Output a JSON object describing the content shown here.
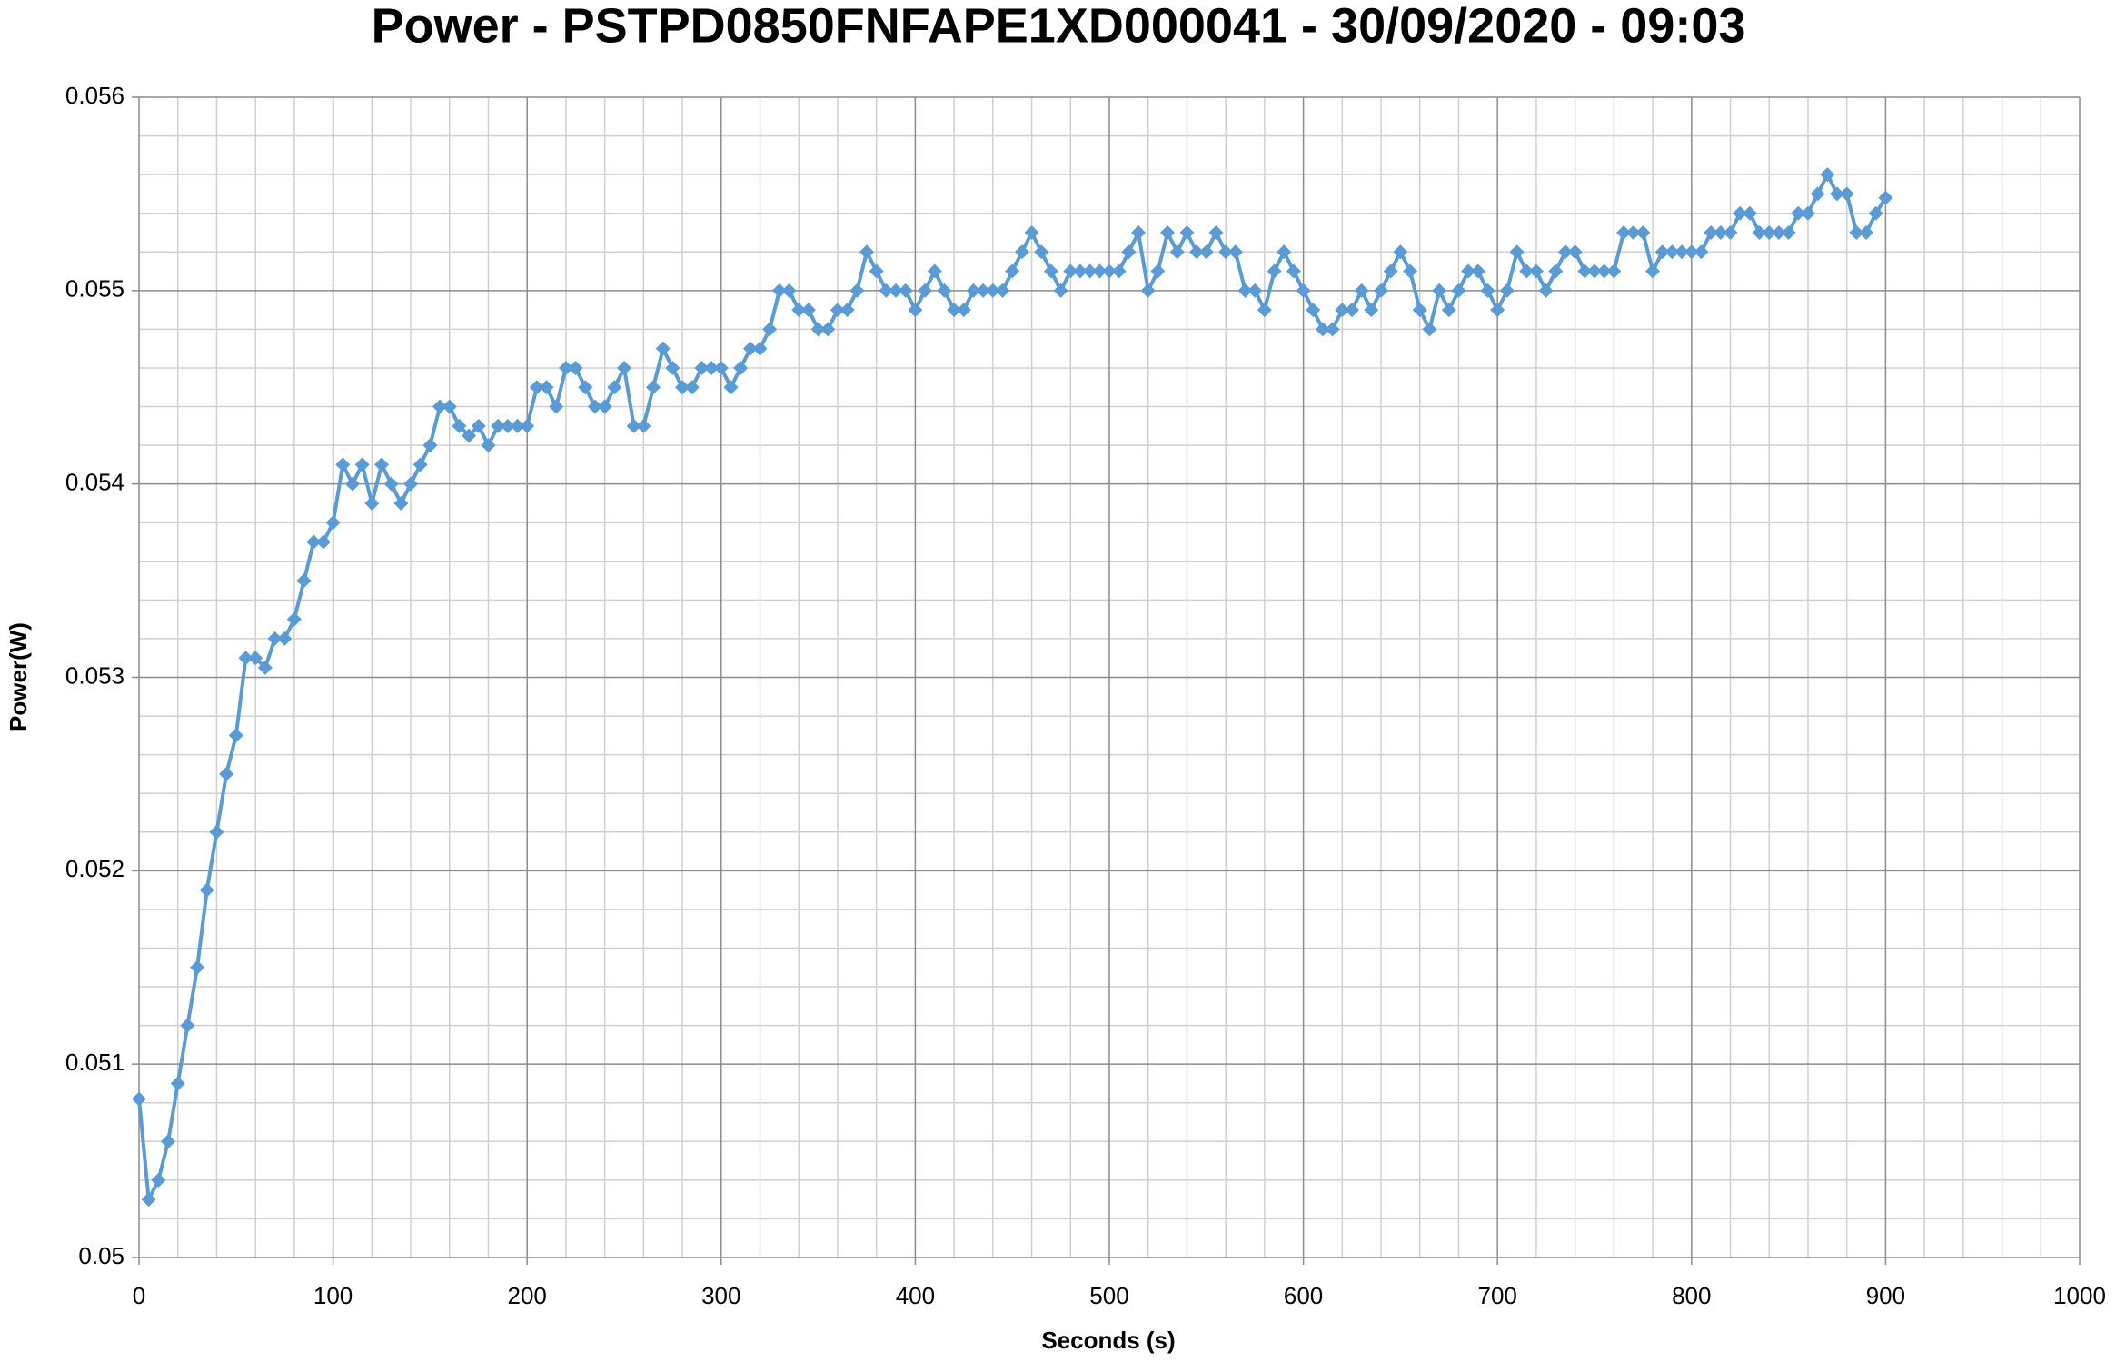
{
  "chart_data": {
    "type": "line",
    "title": "Power - PSTPD0850FNFAPE1XD000041 - 30/09/2020 - 09:03",
    "x_label": "Seconds (s)",
    "y_label": "Power(W)",
    "xlim": [
      0,
      1000
    ],
    "ylim": [
      0.05,
      0.056
    ],
    "xticks": [
      0,
      100,
      200,
      300,
      400,
      500,
      600,
      700,
      800,
      900,
      1000
    ],
    "yticks": [
      0.05,
      0.051,
      0.052,
      0.053,
      0.054,
      0.055,
      0.056
    ],
    "x_minor_grid": [
      20,
      40,
      60,
      80,
      120,
      140,
      160,
      180,
      220,
      240,
      260,
      280,
      320,
      340,
      360,
      380,
      420,
      440,
      460,
      480,
      520,
      540,
      560,
      580,
      620,
      640,
      660,
      680,
      720,
      740,
      760,
      780,
      820,
      840,
      860,
      880,
      920,
      940,
      960,
      980
    ],
    "y_minor_grid": [
      0.0502,
      0.0504,
      0.0506,
      0.0508,
      0.0512,
      0.0514,
      0.0516,
      0.0518,
      0.0522,
      0.0524,
      0.0526,
      0.0528,
      0.0532,
      0.0534,
      0.0536,
      0.0538,
      0.0542,
      0.0544,
      0.0546,
      0.0548,
      0.0552,
      0.0554,
      0.0556,
      0.0558
    ],
    "grid": true,
    "x": [
      0,
      5,
      10,
      15,
      20,
      25,
      30,
      35,
      40,
      45,
      50,
      55,
      60,
      65,
      70,
      75,
      80,
      85,
      90,
      95,
      100,
      105,
      110,
      115,
      120,
      125,
      130,
      135,
      140,
      145,
      150,
      155,
      160,
      165,
      170,
      175,
      180,
      185,
      190,
      195,
      200,
      205,
      210,
      215,
      220,
      225,
      230,
      235,
      240,
      245,
      250,
      255,
      260,
      265,
      270,
      275,
      280,
      285,
      290,
      295,
      300,
      305,
      310,
      315,
      320,
      325,
      330,
      335,
      340,
      345,
      350,
      355,
      360,
      365,
      370,
      375,
      380,
      385,
      390,
      395,
      400,
      405,
      410,
      415,
      420,
      425,
      430,
      435,
      440,
      445,
      450,
      455,
      460,
      465,
      470,
      475,
      480,
      485,
      490,
      495,
      500,
      505,
      510,
      515,
      520,
      525,
      530,
      535,
      540,
      545,
      550,
      555,
      560,
      565,
      570,
      575,
      580,
      585,
      590,
      595,
      600,
      605,
      610,
      615,
      620,
      625,
      630,
      635,
      640,
      645,
      650,
      655,
      660,
      665,
      670,
      675,
      680,
      685,
      690,
      695,
      700,
      705,
      710,
      715,
      720,
      725,
      730,
      735,
      740,
      745,
      750,
      755,
      760,
      765,
      770,
      775,
      780,
      785,
      790,
      795,
      800,
      805,
      810,
      815,
      820,
      825,
      830,
      835,
      840,
      845,
      850,
      855,
      860,
      865,
      870,
      875,
      880,
      885,
      890,
      895,
      900
    ],
    "series": [
      {
        "name": "Power",
        "color": "#5b9bd5",
        "values": [
          0.05082,
          0.0503,
          0.0504,
          0.0506,
          0.0509,
          0.0512,
          0.0515,
          0.0519,
          0.0522,
          0.0525,
          0.0527,
          0.0531,
          0.0531,
          0.05305,
          0.0532,
          0.0532,
          0.0533,
          0.0535,
          0.0537,
          0.0537,
          0.0538,
          0.0541,
          0.054,
          0.0541,
          0.0539,
          0.0541,
          0.054,
          0.0539,
          0.054,
          0.0541,
          0.0542,
          0.0544,
          0.0544,
          0.0543,
          0.05425,
          0.0543,
          0.0542,
          0.0543,
          0.0543,
          0.0543,
          0.0543,
          0.0545,
          0.0545,
          0.0544,
          0.0546,
          0.0546,
          0.0545,
          0.0544,
          0.0544,
          0.0545,
          0.0546,
          0.0543,
          0.0543,
          0.0545,
          0.0547,
          0.0546,
          0.0545,
          0.0545,
          0.0546,
          0.0546,
          0.0546,
          0.0545,
          0.0546,
          0.0547,
          0.0547,
          0.0548,
          0.055,
          0.055,
          0.0549,
          0.0549,
          0.0548,
          0.0548,
          0.0549,
          0.0549,
          0.055,
          0.0552,
          0.0551,
          0.055,
          0.055,
          0.055,
          0.0549,
          0.055,
          0.0551,
          0.055,
          0.0549,
          0.0549,
          0.055,
          0.055,
          0.055,
          0.055,
          0.0551,
          0.0552,
          0.0553,
          0.0552,
          0.0551,
          0.055,
          0.0551,
          0.0551,
          0.0551,
          0.0551,
          0.0551,
          0.0551,
          0.0552,
          0.0553,
          0.055,
          0.0551,
          0.0553,
          0.0552,
          0.0553,
          0.0552,
          0.0552,
          0.0553,
          0.0552,
          0.0552,
          0.055,
          0.055,
          0.0549,
          0.0551,
          0.0552,
          0.0551,
          0.055,
          0.0549,
          0.0548,
          0.0548,
          0.0549,
          0.0549,
          0.055,
          0.0549,
          0.055,
          0.0551,
          0.0552,
          0.0551,
          0.0549,
          0.0548,
          0.055,
          0.0549,
          0.055,
          0.0551,
          0.0551,
          0.055,
          0.0549,
          0.055,
          0.0552,
          0.0551,
          0.0551,
          0.055,
          0.0551,
          0.0552,
          0.0552,
          0.0551,
          0.0551,
          0.0551,
          0.0551,
          0.0553,
          0.0553,
          0.0553,
          0.0551,
          0.0552,
          0.0552,
          0.0552,
          0.0552,
          0.0552,
          0.0553,
          0.0553,
          0.0553,
          0.0554,
          0.0554,
          0.0553,
          0.0553,
          0.0553,
          0.0553,
          0.0554,
          0.0554,
          0.0555,
          0.0556,
          0.0555,
          0.0555,
          0.0553,
          0.0553,
          0.0554,
          0.05548
        ]
      }
    ]
  }
}
